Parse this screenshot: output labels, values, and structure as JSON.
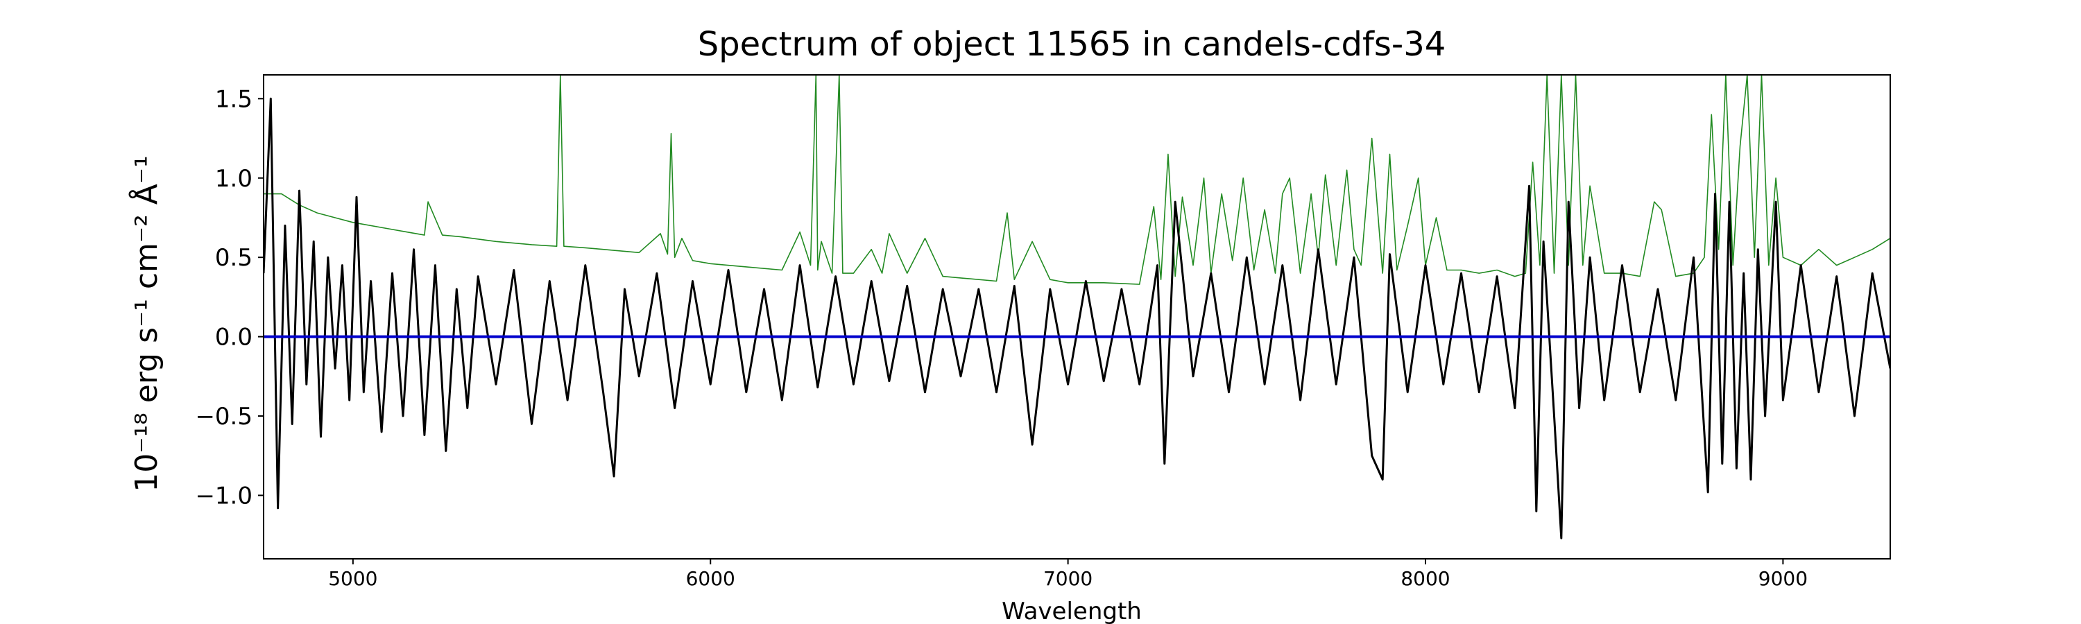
{
  "chart_data": {
    "type": "line",
    "title": "Spectrum of object 11565 in candels-cdfs-34",
    "xlabel": "Wavelength",
    "ylabel": "10⁻¹⁸ erg s⁻¹ cm⁻² Å⁻¹",
    "xlim": [
      4750,
      9300
    ],
    "ylim": [
      -1.4,
      1.65
    ],
    "xticks": [
      5000,
      6000,
      7000,
      8000,
      9000
    ],
    "xtick_labels": [
      "5000",
      "6000",
      "7000",
      "8000",
      "9000"
    ],
    "yticks": [
      -1.0,
      -0.5,
      0.0,
      0.5,
      1.0,
      1.5
    ],
    "ytick_labels": [
      "−1.0",
      "−0.5",
      "0.0",
      "0.5",
      "1.0",
      "1.5"
    ],
    "grid": false,
    "series": [
      {
        "role": "flux",
        "color": "#000000",
        "x": [
          4750,
          4770,
          4790,
          4810,
          4830,
          4850,
          4870,
          4890,
          4910,
          4930,
          4950,
          4970,
          4990,
          5010,
          5030,
          5050,
          5080,
          5110,
          5140,
          5170,
          5200,
          5230,
          5260,
          5290,
          5320,
          5350,
          5400,
          5450,
          5500,
          5550,
          5600,
          5650,
          5700,
          5730,
          5760,
          5800,
          5850,
          5900,
          5950,
          6000,
          6050,
          6100,
          6150,
          6200,
          6250,
          6300,
          6350,
          6400,
          6450,
          6500,
          6550,
          6600,
          6650,
          6700,
          6750,
          6800,
          6850,
          6900,
          6950,
          7000,
          7050,
          7100,
          7150,
          7200,
          7250,
          7270,
          7300,
          7350,
          7400,
          7450,
          7500,
          7550,
          7600,
          7650,
          7700,
          7750,
          7800,
          7850,
          7880,
          7900,
          7950,
          8000,
          8050,
          8100,
          8150,
          8200,
          8250,
          8290,
          8310,
          8330,
          8360,
          8380,
          8400,
          8430,
          8460,
          8500,
          8550,
          8600,
          8650,
          8700,
          8750,
          8790,
          8810,
          8830,
          8850,
          8870,
          8890,
          8910,
          8930,
          8950,
          8980,
          9000,
          9050,
          9100,
          9150,
          9200,
          9250,
          9300
        ],
        "y": [
          0.4,
          1.5,
          -1.08,
          0.7,
          -0.55,
          0.92,
          -0.3,
          0.6,
          -0.63,
          0.5,
          -0.2,
          0.45,
          -0.4,
          0.88,
          -0.35,
          0.35,
          -0.6,
          0.4,
          -0.5,
          0.55,
          -0.62,
          0.45,
          -0.72,
          0.3,
          -0.45,
          0.38,
          -0.3,
          0.42,
          -0.55,
          0.35,
          -0.4,
          0.45,
          -0.35,
          -0.88,
          0.3,
          -0.25,
          0.4,
          -0.45,
          0.35,
          -0.3,
          0.42,
          -0.35,
          0.3,
          -0.4,
          0.45,
          -0.32,
          0.38,
          -0.3,
          0.35,
          -0.28,
          0.32,
          -0.35,
          0.3,
          -0.25,
          0.3,
          -0.35,
          0.32,
          -0.68,
          0.3,
          -0.3,
          0.35,
          -0.28,
          0.3,
          -0.3,
          0.45,
          -0.8,
          0.85,
          -0.25,
          0.4,
          -0.35,
          0.5,
          -0.3,
          0.45,
          -0.4,
          0.55,
          -0.3,
          0.5,
          -0.75,
          -0.9,
          0.52,
          -0.35,
          0.45,
          -0.3,
          0.4,
          -0.35,
          0.38,
          -0.45,
          0.95,
          -1.1,
          0.6,
          -0.5,
          -1.27,
          0.85,
          -0.45,
          0.5,
          -0.4,
          0.45,
          -0.35,
          0.3,
          -0.4,
          0.5,
          -0.98,
          0.9,
          -0.8,
          0.85,
          -0.83,
          0.4,
          -0.9,
          0.55,
          -0.5,
          0.85,
          -0.4,
          0.45,
          -0.35,
          0.38,
          -0.5,
          0.4,
          -0.2
        ]
      },
      {
        "role": "error",
        "color": "#228b22",
        "x": [
          4750,
          4800,
          4850,
          4900,
          4950,
          5000,
          5100,
          5150,
          5200,
          5210,
          5250,
          5300,
          5400,
          5500,
          5570,
          5580,
          5590,
          5650,
          5700,
          5800,
          5860,
          5880,
          5890,
          5900,
          5920,
          5950,
          6000,
          6100,
          6200,
          6250,
          6280,
          6295,
          6300,
          6310,
          6340,
          6360,
          6370,
          6400,
          6450,
          6480,
          6500,
          6550,
          6600,
          6650,
          6700,
          6800,
          6830,
          6850,
          6900,
          6950,
          7000,
          7100,
          7200,
          7240,
          7260,
          7280,
          7300,
          7320,
          7350,
          7380,
          7400,
          7430,
          7460,
          7490,
          7520,
          7550,
          7580,
          7600,
          7620,
          7650,
          7680,
          7700,
          7720,
          7750,
          7780,
          7800,
          7820,
          7850,
          7880,
          7900,
          7920,
          7950,
          7980,
          8000,
          8030,
          8060,
          8100,
          8150,
          8200,
          8250,
          8280,
          8300,
          8320,
          8340,
          8360,
          8380,
          8400,
          8420,
          8440,
          8460,
          8500,
          8550,
          8600,
          8640,
          8660,
          8700,
          8750,
          8780,
          8800,
          8820,
          8840,
          8860,
          8880,
          8900,
          8920,
          8940,
          8960,
          8980,
          9000,
          9050,
          9100,
          9150,
          9200,
          9250,
          9300
        ],
        "y": [
          0.9,
          0.9,
          0.83,
          0.78,
          0.75,
          0.72,
          0.68,
          0.66,
          0.64,
          0.85,
          0.64,
          0.63,
          0.6,
          0.58,
          0.57,
          1.65,
          0.57,
          0.56,
          0.55,
          0.53,
          0.65,
          0.52,
          1.28,
          0.5,
          0.62,
          0.48,
          0.46,
          0.44,
          0.42,
          0.66,
          0.45,
          1.65,
          0.42,
          0.6,
          0.4,
          1.65,
          0.4,
          0.4,
          0.55,
          0.4,
          0.65,
          0.4,
          0.62,
          0.38,
          0.37,
          0.35,
          0.78,
          0.36,
          0.6,
          0.36,
          0.34,
          0.34,
          0.33,
          0.82,
          0.36,
          1.15,
          0.38,
          0.88,
          0.45,
          1.0,
          0.4,
          0.9,
          0.48,
          1.0,
          0.42,
          0.8,
          0.4,
          0.9,
          1.0,
          0.4,
          0.9,
          0.5,
          1.02,
          0.45,
          1.05,
          0.55,
          0.45,
          1.25,
          0.4,
          1.15,
          0.42,
          0.7,
          1.0,
          0.45,
          0.75,
          0.42,
          0.42,
          0.4,
          0.42,
          0.38,
          0.4,
          1.1,
          0.45,
          1.65,
          0.4,
          1.65,
          0.45,
          1.65,
          0.45,
          0.95,
          0.4,
          0.4,
          0.38,
          0.85,
          0.8,
          0.38,
          0.4,
          0.5,
          1.4,
          0.55,
          1.65,
          0.45,
          1.2,
          1.65,
          0.5,
          1.65,
          0.45,
          1.0,
          0.5,
          0.45,
          0.55,
          0.45,
          0.5,
          0.55,
          0.62
        ]
      },
      {
        "role": "model",
        "color": "#0000cc",
        "x": [
          4750,
          9300
        ],
        "y": [
          0.0,
          0.0
        ]
      }
    ]
  }
}
